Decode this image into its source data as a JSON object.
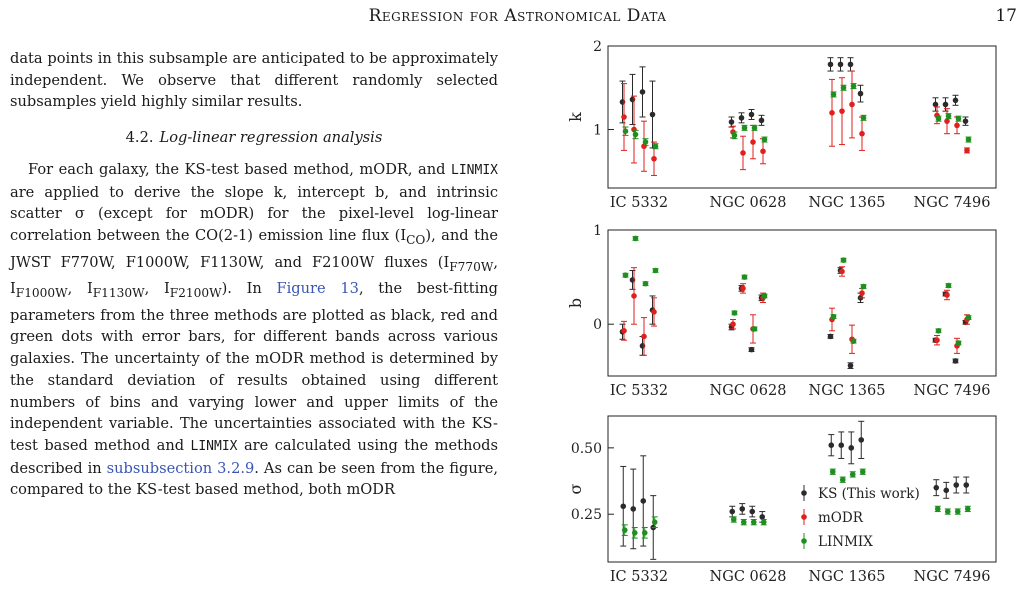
{
  "header": {
    "title": "Regression for Astronomical Data",
    "page_number": "17"
  },
  "text": {
    "para1": "data points in this subsample are anticipated to be approximately independent. We observe that different randomly selected subsamples yield highly similar results.",
    "section_number": "4.2.",
    "section_title": "Log-linear regression analysis",
    "p2_a": "For each galaxy, the KS-test based method, mODR, and ",
    "linmix": "LINMIX",
    "p2_b": " are applied to derive the slope k, intercept b, and intrinsic scatter σ (except for mODR) for the pixel-level log-linear correlation between the CO(2-1) emission line flux (I",
    "sub_co": "CO",
    "p2_c": "), and the JWST F770W, F1000W, F1130W, and F2100W fluxes (I",
    "sub_770": "F770W",
    "sep1": ", I",
    "sub_1000": "F1000W",
    "sep2": ", I",
    "sub_1130": "F1130W",
    "sep3": ", I",
    "sub_2100": "F2100W",
    "p2_d": "). In ",
    "fig_ref": "Figure 13",
    "p2_e": ", the best-fitting parameters from the three methods are plotted as black, red and green dots with error bars, for different bands across various galaxies. The uncertainty of the mODR method is determined by the standard deviation of results obtained using different numbers of bins and varying lower and upper limits of the independent variable. The uncertainties associated with the KS-test based method and ",
    "linmix2": "LINMIX",
    "p2_f": " are calculated using the methods described in ",
    "sub_ref": "subsubsection 3.2.9",
    "p2_g": ". As can be seen from the figure, compared to the KS-test based method, both mODR"
  },
  "chart_data": [
    {
      "type": "scatter",
      "ylabel": "k",
      "ylim": [
        0.3,
        2.0
      ],
      "yticks": [
        "1",
        "2"
      ],
      "categories": [
        "IC 5332",
        "NGC 0628",
        "NGC 1365",
        "NGC 7496"
      ],
      "series": [
        {
          "color": "#2b2b2b",
          "values": [
            1.33,
            1.36,
            1.45,
            1.18,
            1.09,
            1.14,
            1.18,
            1.11,
            1.78,
            1.78,
            1.78,
            1.43,
            1.3,
            1.3,
            1.35,
            1.1
          ],
          "err": [
            0.25,
            0.3,
            0.3,
            0.4,
            0.06,
            0.06,
            0.06,
            0.06,
            0.08,
            0.08,
            0.08,
            0.1,
            0.08,
            0.08,
            0.06,
            0.05
          ]
        },
        {
          "color": "#e0201c",
          "values": [
            1.15,
            1.0,
            0.8,
            0.65,
            0.97,
            0.72,
            0.85,
            0.74,
            1.2,
            1.22,
            1.3,
            0.95,
            1.17,
            1.1,
            1.05,
            0.75
          ],
          "err": [
            0.4,
            0.4,
            0.3,
            0.2,
            0.07,
            0.2,
            0.2,
            0.15,
            0.4,
            0.4,
            0.4,
            0.2,
            0.1,
            0.15,
            0.1,
            0.03
          ]
        },
        {
          "color": "#1f8f1f",
          "values": [
            0.98,
            0.94,
            0.85,
            0.8,
            0.93,
            1.02,
            1.02,
            0.88,
            1.42,
            1.5,
            1.52,
            1.14,
            1.13,
            1.16,
            1.13,
            0.88
          ],
          "err": [
            0.05,
            0.05,
            0.04,
            0.03,
            0.04,
            0.03,
            0.03,
            0.03,
            0.03,
            0.03,
            0.03,
            0.03,
            0.03,
            0.03,
            0.03,
            0.03
          ]
        }
      ]
    },
    {
      "type": "scatter",
      "ylabel": "b",
      "ylim": [
        -0.55,
        1.0
      ],
      "yticks": [
        "0",
        "1"
      ],
      "categories": [
        "IC 5332",
        "NGC 0628",
        "NGC 1365",
        "NGC 7496"
      ],
      "series": [
        {
          "color": "#2b2b2b",
          "values": [
            -0.08,
            0.47,
            -0.23,
            0.15,
            -0.03,
            0.38,
            -0.27,
            0.28,
            -0.13,
            0.57,
            -0.44,
            0.28,
            -0.17,
            0.32,
            -0.39,
            0.02
          ],
          "err": [
            0.08,
            0.1,
            0.1,
            0.15,
            0.03,
            0.03,
            0.02,
            0.03,
            0.02,
            0.03,
            0.03,
            0.05,
            0.02,
            0.02,
            0.02,
            0.02
          ]
        },
        {
          "color": "#e0201c",
          "values": [
            -0.07,
            0.3,
            -0.13,
            0.13,
            0.0,
            0.38,
            -0.05,
            0.28,
            0.05,
            0.56,
            -0.16,
            0.33,
            -0.17,
            0.31,
            -0.23,
            0.05
          ],
          "err": [
            0.1,
            0.3,
            0.2,
            0.15,
            0.05,
            0.05,
            0.15,
            0.05,
            0.12,
            0.05,
            0.15,
            0.05,
            0.05,
            0.05,
            0.08,
            0.05
          ]
        },
        {
          "color": "#1f8f1f",
          "values": [
            0.52,
            0.91,
            0.43,
            0.57,
            0.12,
            0.5,
            -0.05,
            0.3,
            0.08,
            0.68,
            -0.18,
            0.4,
            -0.07,
            0.41,
            -0.2,
            0.07
          ],
          "err": [
            0.02,
            0.02,
            0.02,
            0.02,
            0.02,
            0.02,
            0.02,
            0.02,
            0.02,
            0.02,
            0.02,
            0.02,
            0.02,
            0.02,
            0.02,
            0.02
          ]
        }
      ]
    },
    {
      "type": "scatter",
      "ylabel": "σ",
      "ylim": [
        0.07,
        0.62
      ],
      "yticks": [
        "0.25",
        "0.50"
      ],
      "categories": [
        "IC 5332",
        "NGC 0628",
        "NGC 1365",
        "NGC 7496"
      ],
      "legend": [
        "KS (This work)",
        "mODR",
        "LINMIX"
      ],
      "series": [
        {
          "color": "#2b2b2b",
          "values": [
            0.28,
            0.27,
            0.3,
            0.2,
            0.26,
            0.27,
            0.26,
            0.24,
            0.51,
            0.51,
            0.5,
            0.53,
            0.35,
            0.34,
            0.36,
            0.36
          ],
          "err": [
            0.15,
            0.15,
            0.17,
            0.12,
            0.02,
            0.02,
            0.02,
            0.02,
            0.04,
            0.05,
            0.06,
            0.07,
            0.03,
            0.03,
            0.03,
            0.03
          ]
        },
        {
          "color": "#1f8f1f",
          "values": [
            0.19,
            0.18,
            0.18,
            0.22,
            0.23,
            0.22,
            0.22,
            0.22,
            0.41,
            0.38,
            0.4,
            0.41,
            0.27,
            0.26,
            0.26,
            0.27
          ],
          "err": [
            0.02,
            0.02,
            0.02,
            0.02,
            0.01,
            0.01,
            0.01,
            0.01,
            0.01,
            0.01,
            0.01,
            0.01,
            0.01,
            0.01,
            0.01,
            0.01
          ]
        }
      ]
    }
  ]
}
